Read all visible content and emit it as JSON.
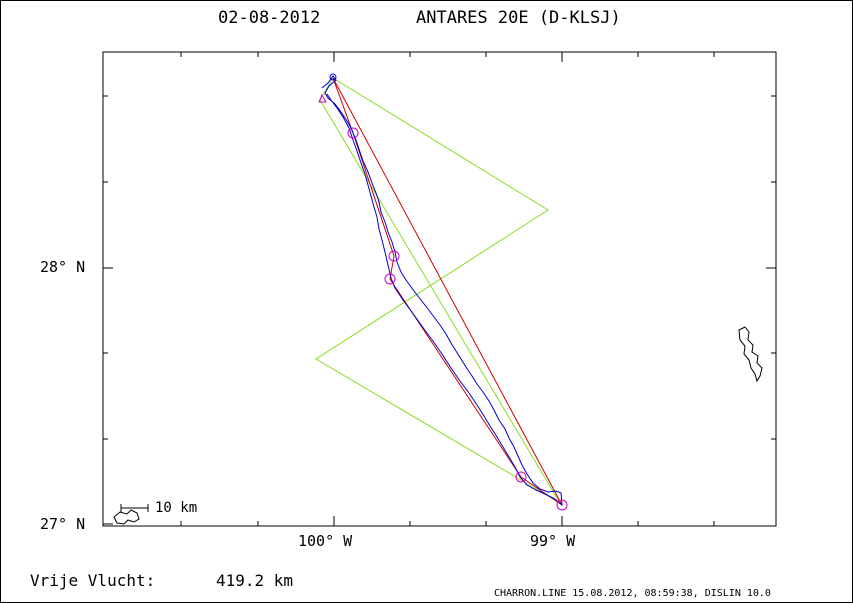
{
  "header": {
    "date": "02-08-2012",
    "glider": "ANTARES 20E (D-KLSJ)"
  },
  "axes": {
    "lat_labels": [
      "28° N",
      "27° N"
    ],
    "lon_labels": [
      "100° W",
      "99° W"
    ]
  },
  "scale_bar": {
    "label": "10 km"
  },
  "flight": {
    "label": "Vrije Vlucht:",
    "distance": "419.2 km"
  },
  "footer": {
    "credit": "CHARRON.LINE 15.08.2012, 08:59:38, DISLIN 10.0"
  },
  "colors": {
    "task": "#88dd22",
    "track": "#0000cc",
    "optimized": "#cc0000",
    "turnpoints": "#cc00cc"
  }
}
